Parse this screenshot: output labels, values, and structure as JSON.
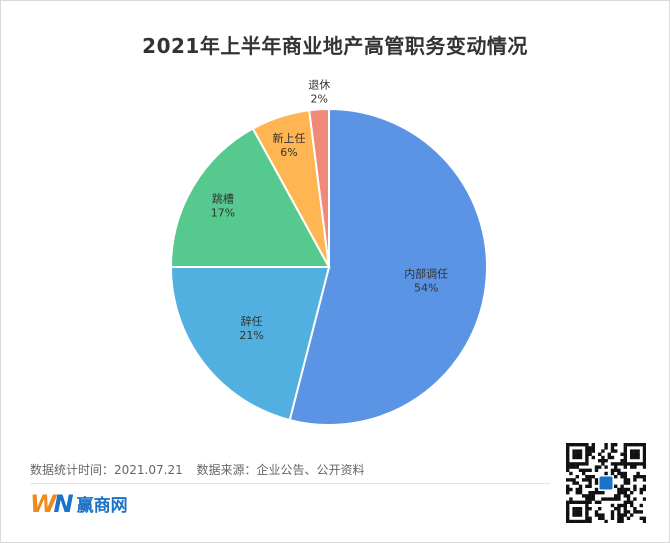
{
  "chart_data": {
    "type": "pie",
    "title": "2021年上半年商业地产高管职务变动情况",
    "slices": [
      {
        "label": "内部调任",
        "value": 54,
        "value_label": "54%",
        "color": "#5b93e5"
      },
      {
        "label": "辞任",
        "value": 21,
        "value_label": "21%",
        "color": "#52b0e0"
      },
      {
        "label": "跳槽",
        "value": 17,
        "value_label": "17%",
        "color": "#55c98e"
      },
      {
        "label": "新上任",
        "value": 6,
        "value_label": "6%",
        "color": "#ffb552"
      },
      {
        "label": "退休",
        "value": 2,
        "value_label": "2%",
        "color": "#f08a78"
      }
    ],
    "start": "12 o'clock",
    "direction": "clockwise",
    "legend": "none"
  },
  "footer": {
    "stat_time": "数据统计时间：2021.07.21",
    "source": "数据来源：企业公告、公开资料"
  },
  "brand": {
    "mark_w": "W",
    "mark_n": "N",
    "name": "赢商网",
    "primary_color": "#1a73c8",
    "accent_color": "#f08a1c"
  },
  "qr_code": {
    "icon": "qr-code-icon"
  }
}
